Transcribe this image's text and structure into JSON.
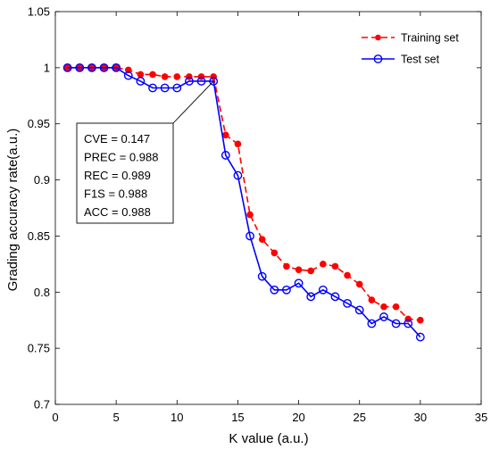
{
  "chart_data": {
    "type": "line",
    "xlabel": "K value (a.u.)",
    "ylabel": "Grading accuracy rate(a.u.)",
    "xlim": [
      0,
      35
    ],
    "ylim": [
      0.7,
      1.05
    ],
    "xticks": [
      0,
      5,
      10,
      15,
      20,
      25,
      30,
      35
    ],
    "yticks": [
      0.7,
      0.75,
      0.8,
      0.85,
      0.9,
      0.95,
      1,
      1.05
    ],
    "x_tick_labels": [
      "0",
      "5",
      "10",
      "15",
      "20",
      "25",
      "30",
      "35"
    ],
    "y_tick_labels": [
      "0.7",
      "0.75",
      "0.8",
      "0.85",
      "0.9",
      "0.95",
      "1",
      "1.05"
    ],
    "grid": false,
    "legend_position": "top-right",
    "series": [
      {
        "name": "Training set",
        "color": "#ff0000",
        "line_style": "dashed",
        "marker": "filled-circle",
        "x": [
          1,
          2,
          3,
          4,
          5,
          6,
          7,
          8,
          9,
          10,
          11,
          12,
          13,
          14,
          15,
          16,
          17,
          18,
          19,
          20,
          21,
          22,
          23,
          24,
          25,
          26,
          27,
          28,
          29,
          30
        ],
        "values": [
          1.0,
          1.0,
          1.0,
          1.0,
          1.0,
          0.998,
          0.994,
          0.994,
          0.992,
          0.992,
          0.992,
          0.992,
          0.992,
          0.94,
          0.932,
          0.869,
          0.847,
          0.835,
          0.823,
          0.82,
          0.819,
          0.825,
          0.823,
          0.815,
          0.807,
          0.793,
          0.787,
          0.787,
          0.776,
          0.775
        ]
      },
      {
        "name": "Test set",
        "color": "#0000ff",
        "line_style": "solid",
        "marker": "open-circle",
        "x": [
          1,
          2,
          3,
          4,
          5,
          6,
          7,
          8,
          9,
          10,
          11,
          12,
          13,
          14,
          15,
          16,
          17,
          18,
          19,
          20,
          21,
          22,
          23,
          24,
          25,
          26,
          27,
          28,
          29,
          30
        ],
        "values": [
          1.0,
          1.0,
          1.0,
          1.0,
          1.0,
          0.993,
          0.988,
          0.982,
          0.982,
          0.982,
          0.988,
          0.988,
          0.988,
          0.922,
          0.904,
          0.85,
          0.814,
          0.802,
          0.802,
          0.808,
          0.796,
          0.802,
          0.796,
          0.79,
          0.784,
          0.772,
          0.778,
          0.772,
          0.772,
          0.76
        ]
      }
    ],
    "annotation": {
      "target_x": 13,
      "target_y": 0.988,
      "lines": [
        "CVE = 0.147",
        "PREC = 0.988",
        "REC = 0.989",
        "F1S = 0.988",
        "ACC = 0.988"
      ]
    }
  }
}
